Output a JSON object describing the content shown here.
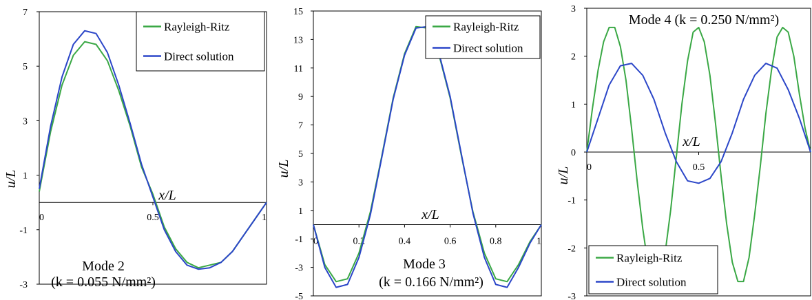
{
  "colors": {
    "rayleigh_ritz": "#3aa845",
    "direct_solution": "#2b46c8",
    "axis": "#000000"
  },
  "chart_data": [
    {
      "type": "line",
      "ylabel": "u/L",
      "xlabel": "x/L",
      "xlim": [
        0,
        1
      ],
      "ylim": [
        -3,
        7
      ],
      "yticks": [
        "-3",
        "-1",
        "1",
        "3",
        "5",
        "7"
      ],
      "xticks": [
        "0",
        "0.5",
        "1"
      ],
      "annotation_line1": "Mode 2",
      "annotation_line2": "(k = 0.055 N/mm²)",
      "legend_position": "top-right",
      "grid": false,
      "series": [
        {
          "name": "Rayleigh-Ritz",
          "x": [
            0,
            0.05,
            0.1,
            0.15,
            0.2,
            0.25,
            0.3,
            0.35,
            0.4,
            0.45,
            0.5,
            0.55,
            0.6,
            0.65,
            0.7,
            0.75,
            0.8,
            0.85,
            0.9,
            0.95,
            1.0
          ],
          "y": [
            0.4,
            2.6,
            4.3,
            5.4,
            5.9,
            5.8,
            5.2,
            4.1,
            2.8,
            1.3,
            0.3,
            -0.9,
            -1.7,
            -2.2,
            -2.4,
            -2.3,
            -2.2,
            -1.8,
            -1.2,
            -0.6,
            0.0
          ]
        },
        {
          "name": "Direct solution",
          "x": [
            0,
            0.05,
            0.1,
            0.15,
            0.2,
            0.25,
            0.3,
            0.35,
            0.4,
            0.45,
            0.5,
            0.55,
            0.6,
            0.65,
            0.7,
            0.75,
            0.8,
            0.85,
            0.9,
            0.95,
            1.0
          ],
          "y": [
            0.5,
            2.8,
            4.6,
            5.8,
            6.3,
            6.2,
            5.5,
            4.3,
            2.9,
            1.4,
            0.2,
            -1.0,
            -1.8,
            -2.3,
            -2.45,
            -2.4,
            -2.2,
            -1.8,
            -1.2,
            -0.6,
            0.0
          ]
        }
      ]
    },
    {
      "type": "line",
      "ylabel": "u/L",
      "xlabel": "x/L",
      "xlim": [
        0,
        1
      ],
      "ylim": [
        -5,
        15
      ],
      "yticks": [
        "-5",
        "-3",
        "-1",
        "1",
        "3",
        "5",
        "7",
        "9",
        "11",
        "13",
        "15"
      ],
      "xticks": [
        "0",
        "0.2",
        "0.4",
        "0.6",
        "0.8",
        "1"
      ],
      "annotation_line1": "Mode 3",
      "annotation_line2": "(k = 0.166 N/mm²)",
      "legend_position": "top-right",
      "grid": false,
      "series": [
        {
          "name": "Rayleigh-Ritz",
          "x": [
            0,
            0.05,
            0.1,
            0.15,
            0.2,
            0.25,
            0.3,
            0.35,
            0.4,
            0.45,
            0.5,
            0.55,
            0.6,
            0.65,
            0.7,
            0.75,
            0.8,
            0.85,
            0.9,
            0.95,
            1.0
          ],
          "y": [
            0,
            -2.8,
            -4.0,
            -3.8,
            -2.0,
            0.9,
            4.8,
            8.9,
            12.0,
            13.9,
            13.8,
            12.0,
            8.9,
            4.8,
            0.9,
            -2.0,
            -3.8,
            -4.0,
            -2.8,
            -1.2,
            0
          ]
        },
        {
          "name": "Direct solution",
          "x": [
            0,
            0.05,
            0.1,
            0.15,
            0.2,
            0.25,
            0.3,
            0.35,
            0.4,
            0.45,
            0.5,
            0.55,
            0.6,
            0.65,
            0.7,
            0.75,
            0.8,
            0.85,
            0.9,
            0.95,
            1.0
          ],
          "y": [
            0,
            -3.0,
            -4.4,
            -4.2,
            -2.3,
            0.7,
            4.7,
            8.8,
            11.9,
            13.8,
            13.9,
            12.1,
            9.0,
            4.9,
            0.8,
            -2.3,
            -4.2,
            -4.4,
            -3.0,
            -1.3,
            0
          ]
        }
      ]
    },
    {
      "type": "line",
      "ylabel": "u/L",
      "xlabel": "x/L",
      "xlim": [
        0,
        1
      ],
      "ylim": [
        -3,
        3
      ],
      "yticks": [
        "-3",
        "-2",
        "-1",
        "0",
        "1",
        "2",
        "3"
      ],
      "xticks": [
        "0",
        "0.5"
      ],
      "annotation_line1": "Mode 4 (k = 0.250 N/mm²)",
      "legend_position": "bottom-left",
      "grid": false,
      "series": [
        {
          "name": "Rayleigh-Ritz",
          "x": [
            0,
            0.025,
            0.05,
            0.075,
            0.1,
            0.125,
            0.15,
            0.175,
            0.2,
            0.225,
            0.25,
            0.275,
            0.3,
            0.325,
            0.35,
            0.375,
            0.4,
            0.425,
            0.45,
            0.475,
            0.5,
            0.525,
            0.55,
            0.575,
            0.6,
            0.625,
            0.65,
            0.675,
            0.7,
            0.725,
            0.75,
            0.775,
            0.8,
            0.825,
            0.85,
            0.875,
            0.9,
            0.925,
            0.95,
            0.975,
            1.0
          ],
          "y": [
            0,
            0.9,
            1.7,
            2.3,
            2.6,
            2.6,
            2.2,
            1.5,
            0.5,
            -0.6,
            -1.6,
            -2.4,
            -2.8,
            -2.7,
            -2.1,
            -1.2,
            -0.1,
            1.0,
            1.9,
            2.5,
            2.6,
            2.3,
            1.6,
            0.6,
            -0.5,
            -1.5,
            -2.3,
            -2.7,
            -2.7,
            -2.2,
            -1.3,
            -0.3,
            0.8,
            1.7,
            2.4,
            2.6,
            2.5,
            2.0,
            1.2,
            0.5,
            0
          ]
        },
        {
          "name": "Direct solution",
          "x": [
            0,
            0.05,
            0.1,
            0.15,
            0.2,
            0.25,
            0.3,
            0.35,
            0.4,
            0.45,
            0.5,
            0.55,
            0.6,
            0.65,
            0.7,
            0.75,
            0.8,
            0.85,
            0.9,
            0.95,
            1.0
          ],
          "y": [
            0,
            0.7,
            1.4,
            1.8,
            1.85,
            1.6,
            1.1,
            0.4,
            -0.2,
            -0.6,
            -0.65,
            -0.55,
            -0.2,
            0.4,
            1.1,
            1.6,
            1.85,
            1.75,
            1.3,
            0.7,
            0
          ]
        }
      ]
    }
  ]
}
